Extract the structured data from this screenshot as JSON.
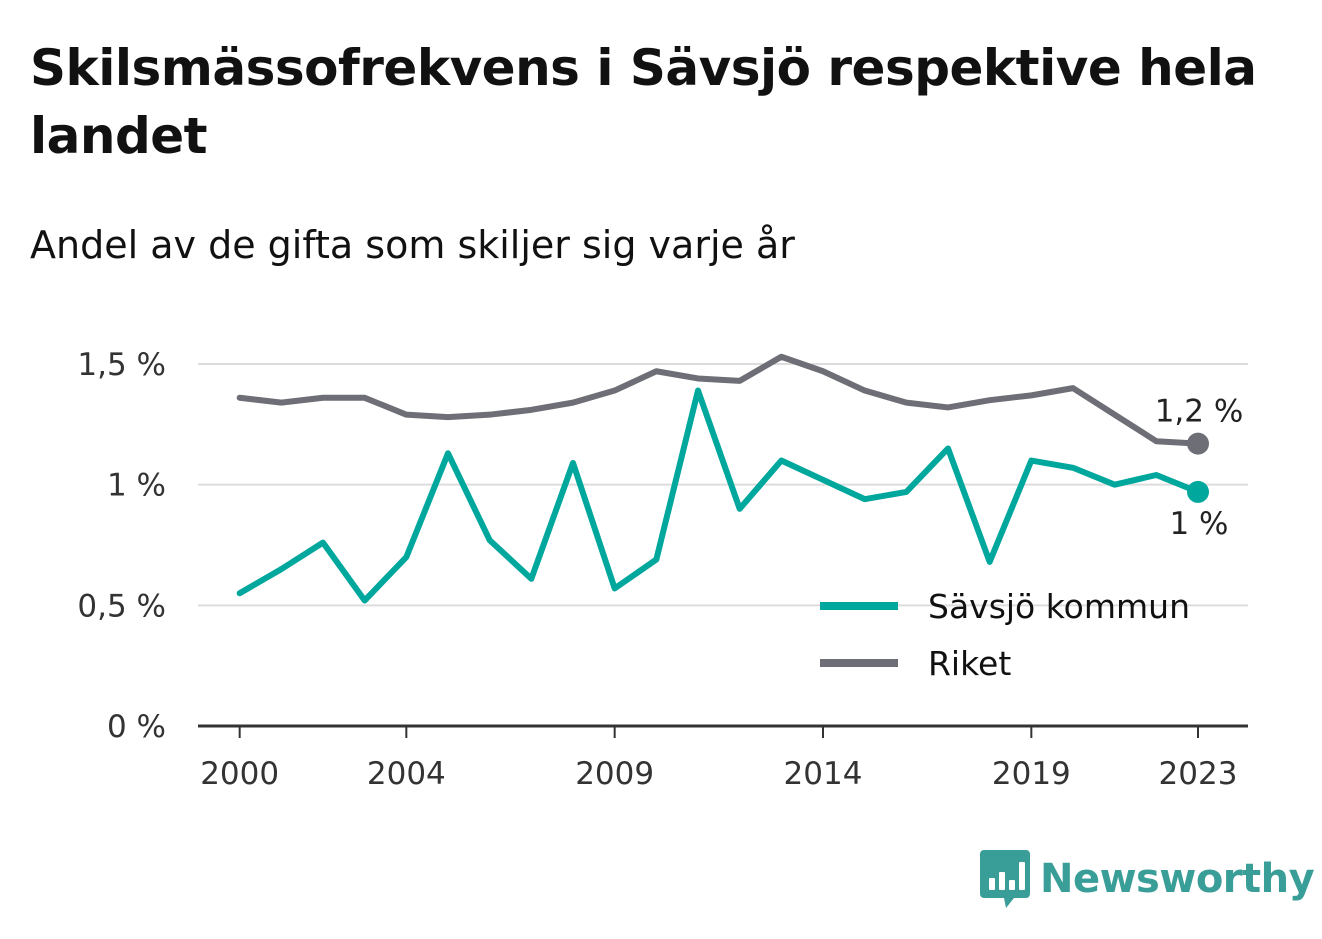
{
  "title": "Skilsmässofrekvens i Sävsjö respektive hela landet",
  "subtitle": "Andel av de gifta som skiljer sig varje år",
  "brand": {
    "name": "Newsworthy",
    "color": "#3a9e98",
    "icon": "bar-chart-speech-bubble-icon"
  },
  "colors": {
    "gridline": "#dddddd",
    "axis": "#333333"
  },
  "chart_data": {
    "type": "line",
    "x": [
      2000,
      2001,
      2002,
      2003,
      2004,
      2005,
      2006,
      2007,
      2008,
      2009,
      2010,
      2011,
      2012,
      2013,
      2014,
      2015,
      2016,
      2017,
      2018,
      2019,
      2020,
      2021,
      2022,
      2023
    ],
    "xticks": [
      2000,
      2004,
      2009,
      2014,
      2019,
      2023
    ],
    "xtick_labels": [
      "2000",
      "2004",
      "2009",
      "2014",
      "2019",
      "2023"
    ],
    "xlim": [
      1999,
      2024.2
    ],
    "yticks": [
      0,
      0.5,
      1,
      1.5
    ],
    "ytick_labels": [
      "0 %",
      "0,5 %",
      "1 %",
      "1,5 %"
    ],
    "ylim": [
      0,
      1.5
    ],
    "grid": true,
    "legend_position": "bottom-right",
    "series": [
      {
        "name": "Sävsjö kommun",
        "color": "#00a79d",
        "values": [
          0.55,
          0.65,
          0.76,
          0.52,
          0.7,
          1.13,
          0.77,
          0.61,
          1.09,
          0.57,
          0.69,
          1.39,
          0.9,
          1.1,
          1.02,
          0.94,
          0.97,
          1.15,
          0.68,
          1.1,
          1.07,
          1.0,
          1.04,
          0.97
        ],
        "end_label": "1 %"
      },
      {
        "name": "Riket",
        "color": "#6e6e77",
        "values": [
          1.36,
          1.34,
          1.36,
          1.36,
          1.29,
          1.28,
          1.29,
          1.31,
          1.34,
          1.39,
          1.47,
          1.44,
          1.43,
          1.53,
          1.47,
          1.39,
          1.34,
          1.32,
          1.35,
          1.37,
          1.4,
          1.29,
          1.18,
          1.17
        ],
        "end_label": "1,2 %"
      }
    ]
  }
}
